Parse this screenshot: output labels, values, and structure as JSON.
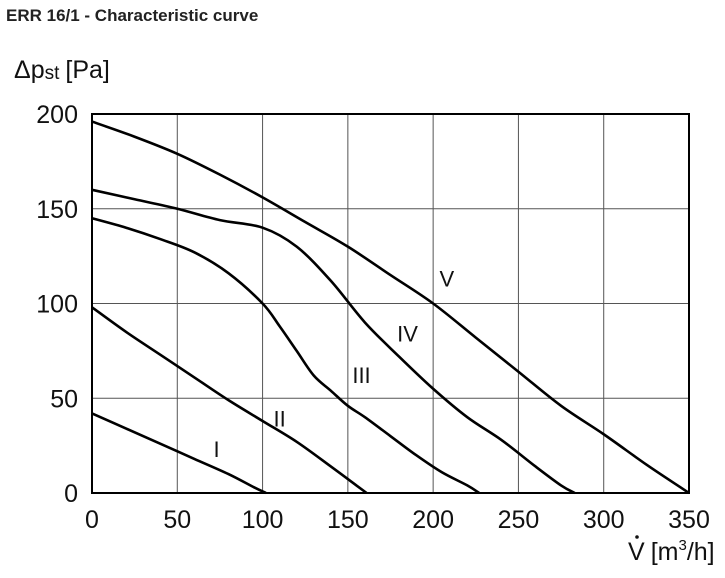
{
  "header": {
    "title": "ERR 16/1 - Characteristic curve"
  },
  "chart_data": {
    "type": "line",
    "title": "ERR 16/1 - Characteristic curve",
    "ylabel": {
      "main": "Δp",
      "sub": "st",
      "unit": "[Pa]"
    },
    "xlabel": {
      "symbol": "V",
      "unit_open": "[m",
      "unit_sup": "3",
      "unit_close": "/h]"
    },
    "xlim": [
      0,
      350
    ],
    "ylim": [
      0,
      200
    ],
    "xticks": [
      "0",
      "50",
      "100",
      "150",
      "200",
      "250",
      "300",
      "350"
    ],
    "yticks": [
      "0",
      "50",
      "100",
      "150",
      "200"
    ],
    "grid": true,
    "series": [
      {
        "name": "I",
        "points": [
          [
            0,
            42
          ],
          [
            20,
            34
          ],
          [
            40,
            26
          ],
          [
            60,
            18
          ],
          [
            80,
            10
          ],
          [
            95,
            3
          ],
          [
            102,
            0
          ]
        ]
      },
      {
        "name": "II",
        "points": [
          [
            0,
            98
          ],
          [
            20,
            85
          ],
          [
            40,
            73
          ],
          [
            60,
            61
          ],
          [
            80,
            49
          ],
          [
            100,
            38
          ],
          [
            120,
            27
          ],
          [
            140,
            14
          ],
          [
            155,
            4
          ],
          [
            161,
            0
          ]
        ]
      },
      {
        "name": "III",
        "points": [
          [
            0,
            145
          ],
          [
            20,
            140
          ],
          [
            40,
            134
          ],
          [
            60,
            127
          ],
          [
            80,
            116
          ],
          [
            100,
            100
          ],
          [
            110,
            88
          ],
          [
            120,
            75
          ],
          [
            130,
            62
          ],
          [
            140,
            54
          ],
          [
            150,
            46
          ],
          [
            160,
            40
          ],
          [
            175,
            30
          ],
          [
            190,
            20
          ],
          [
            205,
            11
          ],
          [
            220,
            4
          ],
          [
            227,
            0
          ]
        ]
      },
      {
        "name": "IV",
        "points": [
          [
            0,
            160
          ],
          [
            25,
            155
          ],
          [
            50,
            150
          ],
          [
            75,
            144
          ],
          [
            100,
            140
          ],
          [
            120,
            130
          ],
          [
            140,
            112
          ],
          [
            160,
            90
          ],
          [
            180,
            72
          ],
          [
            200,
            55
          ],
          [
            220,
            40
          ],
          [
            240,
            28
          ],
          [
            260,
            14
          ],
          [
            275,
            4
          ],
          [
            283,
            0
          ]
        ]
      },
      {
        "name": "V",
        "points": [
          [
            0,
            196
          ],
          [
            25,
            188
          ],
          [
            50,
            179
          ],
          [
            75,
            168
          ],
          [
            100,
            156
          ],
          [
            125,
            143
          ],
          [
            150,
            130
          ],
          [
            175,
            115
          ],
          [
            200,
            100
          ],
          [
            225,
            82
          ],
          [
            250,
            64
          ],
          [
            275,
            46
          ],
          [
            300,
            31
          ],
          [
            325,
            15
          ],
          [
            345,
            3
          ],
          [
            350,
            0
          ]
        ]
      }
    ],
    "curve_label_positions": [
      {
        "text": "I",
        "x": 73,
        "y": 19
      },
      {
        "text": "II",
        "x": 110,
        "y": 35
      },
      {
        "text": "III",
        "x": 158,
        "y": 58
      },
      {
        "text": "IV",
        "x": 185,
        "y": 80
      },
      {
        "text": "V",
        "x": 208,
        "y": 109
      }
    ]
  }
}
